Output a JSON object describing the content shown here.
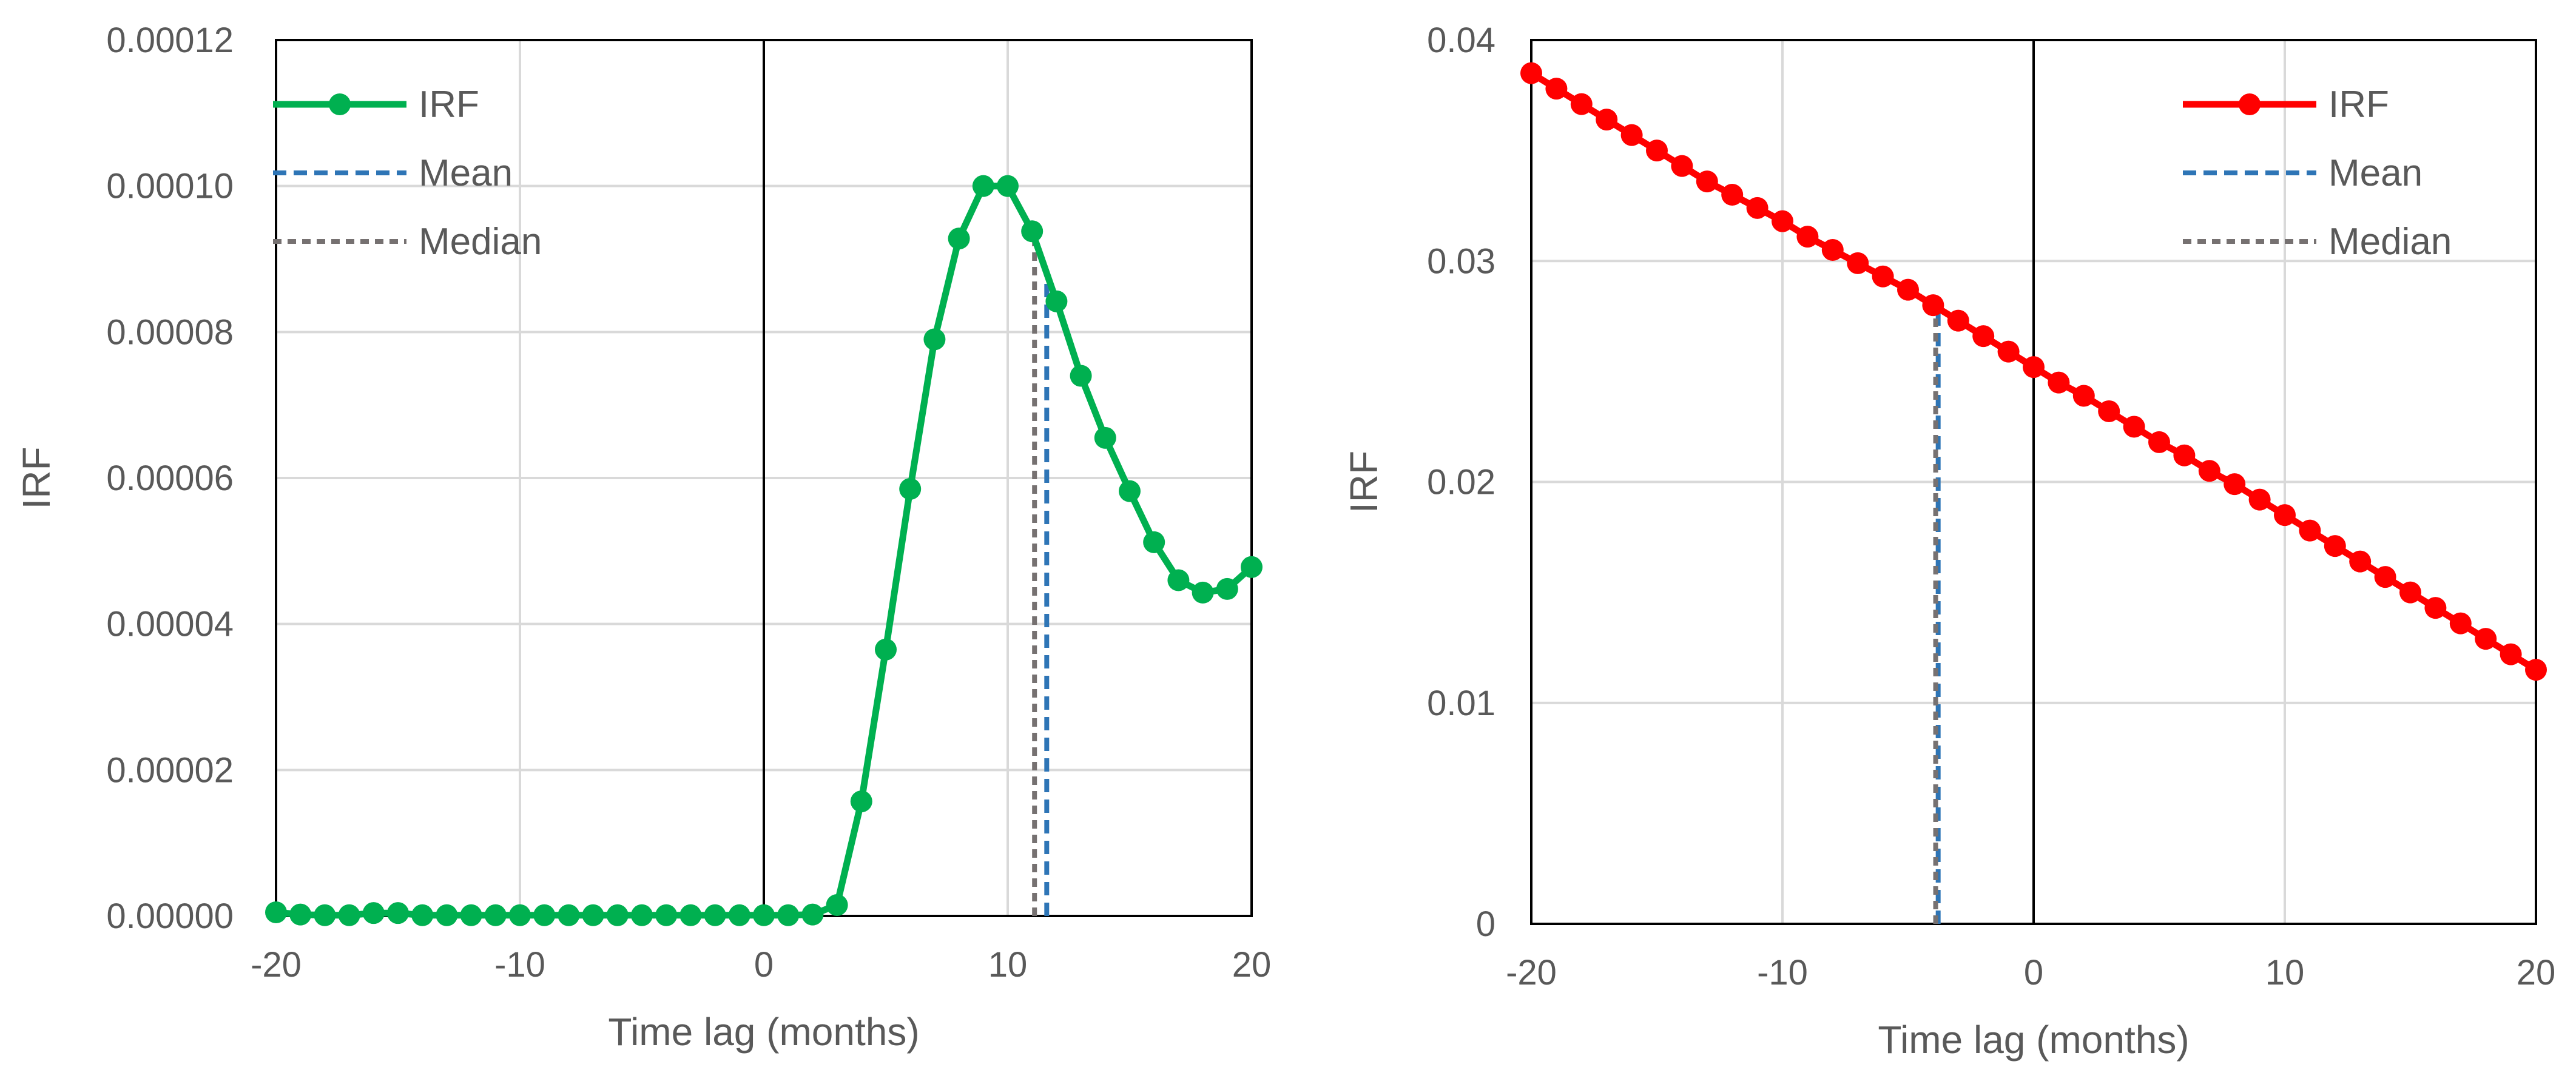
{
  "chart_data": [
    {
      "type": "line",
      "title": "",
      "xlabel": "Time lag (months)",
      "ylabel": "IRF",
      "xlim": [
        -20,
        20
      ],
      "ylim": [
        0,
        0.00012
      ],
      "x_ticks": [
        -20,
        -10,
        0,
        10,
        20
      ],
      "x_tick_labels": [
        "-20",
        "-10",
        "0",
        "10",
        "20"
      ],
      "y_ticks": [
        0,
        2e-05,
        4e-05,
        6e-05,
        8e-05,
        0.0001,
        0.00012
      ],
      "y_tick_labels": [
        "0.00000",
        "0.00002",
        "0.00004",
        "0.00006",
        "0.00008",
        "0.00010",
        "0.00012"
      ],
      "grid": true,
      "legend_position": "top-left",
      "series": [
        {
          "name": "IRF",
          "color": "#00b050",
          "marker": "circle",
          "x": [
            -20,
            -19,
            -18,
            -17,
            -16,
            -15,
            -14,
            -13,
            -12,
            -11,
            -10,
            -9,
            -8,
            -7,
            -6,
            -5,
            -4,
            -3,
            -2,
            -1,
            0,
            1,
            2,
            3,
            4,
            5,
            6,
            7,
            8,
            9,
            10,
            11,
            12,
            13,
            14,
            15,
            16,
            17,
            18,
            19,
            20
          ],
          "values": [
            5e-07,
            2e-07,
            1e-07,
            1e-07,
            4e-07,
            4e-07,
            1e-07,
            1e-07,
            1e-07,
            1e-07,
            1e-07,
            1e-07,
            1e-07,
            1e-07,
            1e-07,
            1e-07,
            1e-07,
            1e-07,
            1e-07,
            1e-07,
            1e-07,
            1e-07,
            2e-07,
            1.5e-06,
            1.57e-05,
            3.65e-05,
            5.85e-05,
            7.9e-05,
            9.28e-05,
            0.0001,
            0.0001,
            9.38e-05,
            8.42e-05,
            7.4e-05,
            6.55e-05,
            5.82e-05,
            5.12e-05,
            4.6e-05,
            4.43e-05,
            4.48e-05,
            4.78e-05
          ]
        }
      ],
      "reference_lines": [
        {
          "name": "Mean",
          "x": 11.6,
          "color": "#2e75b6",
          "style": "dashed"
        },
        {
          "name": "Median",
          "x": 11.1,
          "color": "#767171",
          "style": "dashed"
        }
      ],
      "vertical_axis_line_x": 0
    },
    {
      "type": "line",
      "title": "",
      "xlabel": "Time lag (months)",
      "ylabel": "IRF",
      "xlim": [
        -20,
        20
      ],
      "ylim": [
        0,
        0.04
      ],
      "x_ticks": [
        -20,
        -10,
        0,
        10,
        20
      ],
      "x_tick_labels": [
        "-20",
        "-10",
        "0",
        "10",
        "20"
      ],
      "y_ticks": [
        0,
        0.01,
        0.02,
        0.03,
        0.04
      ],
      "y_tick_labels": [
        "0",
        "0.01",
        "0.02",
        "0.03",
        "0.04"
      ],
      "grid": true,
      "legend_position": "top-right",
      "series": [
        {
          "name": "IRF",
          "color": "#ff0000",
          "marker": "circle",
          "x": [
            -20,
            -19,
            -18,
            -17,
            -16,
            -15,
            -14,
            -13,
            -12,
            -11,
            -10,
            -9,
            -8,
            -7,
            -6,
            -5,
            -4,
            -3,
            -2,
            -1,
            0,
            1,
            2,
            3,
            4,
            5,
            6,
            7,
            8,
            9,
            10,
            11,
            12,
            13,
            14,
            15,
            16,
            17,
            18,
            19,
            20
          ],
          "values": [
            0.0385,
            0.0378,
            0.0371,
            0.0364,
            0.0357,
            0.035,
            0.0343,
            0.0336,
            0.033,
            0.0324,
            0.0318,
            0.0311,
            0.0305,
            0.0299,
            0.0293,
            0.0287,
            0.028,
            0.0273,
            0.0266,
            0.0259,
            0.0252,
            0.0245,
            0.0239,
            0.0232,
            0.0225,
            0.0218,
            0.0212,
            0.0205,
            0.0199,
            0.0192,
            0.0185,
            0.0178,
            0.0171,
            0.0164,
            0.0157,
            0.015,
            0.0143,
            0.0136,
            0.0129,
            0.0122,
            0.0115
          ]
        }
      ],
      "reference_lines": [
        {
          "name": "Mean",
          "x": -3.8,
          "color": "#2e75b6",
          "style": "dashed"
        },
        {
          "name": "Median",
          "x": -3.9,
          "color": "#767171",
          "style": "dashed"
        }
      ],
      "vertical_axis_line_x": 0
    }
  ]
}
